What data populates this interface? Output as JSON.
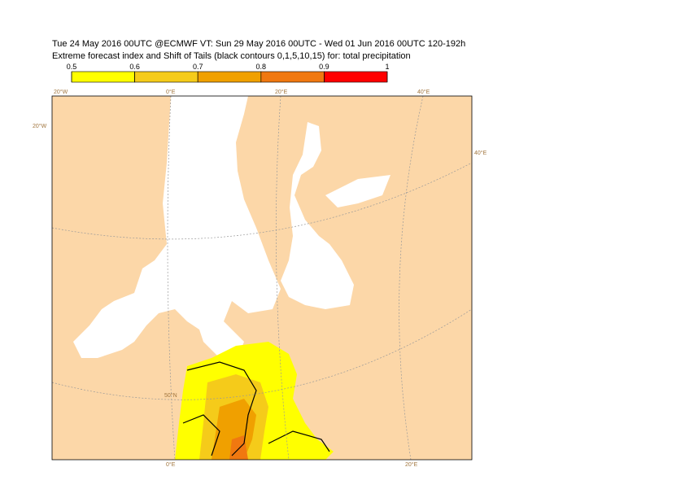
{
  "header": {
    "title_lines": [
      "Tue 24 May 2016 00UTC @ECMWF VT: Sun 29 May 2016 00UTC - Wed 01 Jun 2016 00UTC  120-192h",
      "Extreme forecast index and Shift of Tails (black contours 0,1,5,10,15) for: total precipitation"
    ]
  },
  "colorbar": {
    "ticks": [
      0.5,
      0.6,
      0.7,
      0.8,
      0.9,
      1
    ],
    "colors": [
      "#ffff00",
      "#f5cb1a",
      "#f0a000",
      "#f07810",
      "#ff0000"
    ]
  },
  "map": {
    "graticule_labels": [
      "20°W",
      "0°E",
      "20°E",
      "40°E",
      "20°W",
      "40°E",
      "50°N",
      "0°E",
      "20°E"
    ]
  }
}
